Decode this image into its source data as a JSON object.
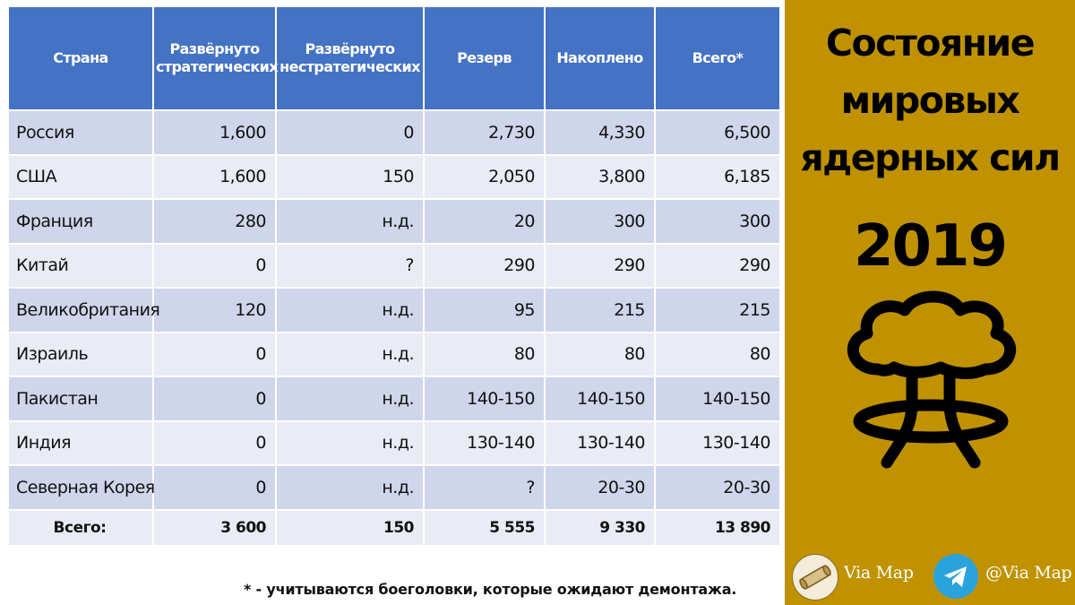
{
  "table": {
    "headers": [
      "Страна",
      "Развёрнуто стратегических",
      "Развёрнуто нестратегических",
      "Резерв",
      "Накоплено",
      "Всего*"
    ],
    "rows": [
      {
        "country": "Россия",
        "strategic": "1,600",
        "nonstrategic": "0",
        "reserve": "2,730",
        "stockpile": "4,330",
        "total": "6,500"
      },
      {
        "country": "США",
        "strategic": "1,600",
        "nonstrategic": "150",
        "reserve": "2,050",
        "stockpile": "3,800",
        "total": "6,185"
      },
      {
        "country": "Франция",
        "strategic": "280",
        "nonstrategic": "н.д.",
        "reserve": "20",
        "stockpile": "300",
        "total": "300"
      },
      {
        "country": "Китай",
        "strategic": "0",
        "nonstrategic": "?",
        "reserve": "290",
        "stockpile": "290",
        "total": "290"
      },
      {
        "country": "Великобритания",
        "strategic": "120",
        "nonstrategic": "н.д.",
        "reserve": "95",
        "stockpile": "215",
        "total": "215"
      },
      {
        "country": "Израиль",
        "strategic": "0",
        "nonstrategic": "н.д.",
        "reserve": "80",
        "stockpile": "80",
        "total": "80"
      },
      {
        "country": "Пакистан",
        "strategic": "0",
        "nonstrategic": "н.д.",
        "reserve": "140-150",
        "stockpile": "140-150",
        "total": "140-150"
      },
      {
        "country": "Индия",
        "strategic": "0",
        "nonstrategic": "н.д.",
        "reserve": "130-140",
        "stockpile": "130-140",
        "total": "130-140"
      },
      {
        "country": "Северная Корея",
        "strategic": "0",
        "nonstrategic": "н.д.",
        "reserve": "?",
        "stockpile": "20-30",
        "total": "20-30"
      }
    ],
    "totals": {
      "label": "Всего:",
      "strategic": "3 600",
      "nonstrategic": "150",
      "reserve": "5 555",
      "stockpile": "9 330",
      "total": "13 890"
    }
  },
  "footnote": "* - учитываются боеголовки, которые ожидают демонтажа.",
  "panel": {
    "title_lines": [
      "Состояние",
      "мировых",
      "ядерных сил"
    ],
    "year": "2019",
    "icon": "mushroom-cloud-icon",
    "logos": [
      {
        "icon": "scroll-map-icon",
        "label": "Via Map"
      },
      {
        "icon": "telegram-icon",
        "label": "@Via Map"
      }
    ]
  },
  "colors": {
    "header_bg": "#4472c4",
    "row_dark": "#cfd5ea",
    "row_light": "#e9ebf5",
    "panel_bg": "#c09200",
    "telegram": "#2aa3dd"
  }
}
